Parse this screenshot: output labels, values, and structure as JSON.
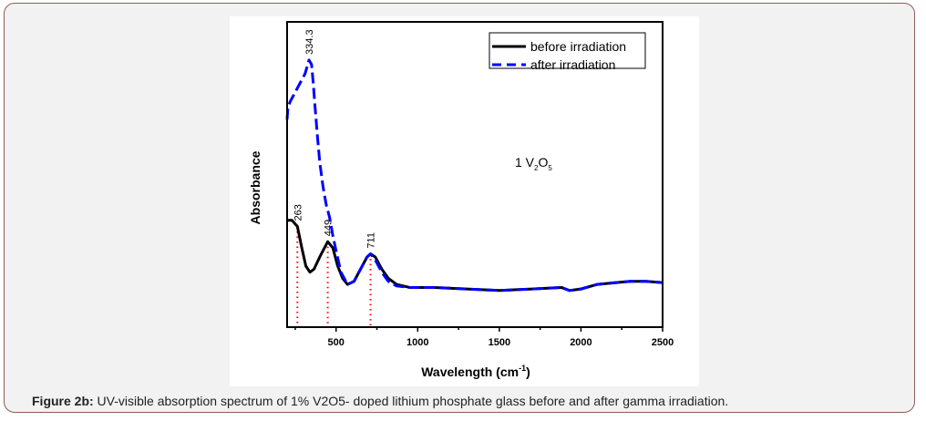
{
  "caption": {
    "label": "Figure 2b:",
    "text": " UV-visible absorption spectrum of 1% V2O5- doped lithium phosphate glass before and after gamma irradiation."
  },
  "chart_data": {
    "type": "line",
    "xlabel": "Wavelength (cm",
    "xlabel_sup": "-1",
    "xlabel_end": ")",
    "ylabel": "Absorbance",
    "xlim": [
      200,
      2500
    ],
    "ylim": [
      0,
      1
    ],
    "xticks": [
      500,
      1000,
      1500,
      2000,
      2500
    ],
    "y_tick_labels_shown": false,
    "grid": false,
    "legend": "top-right",
    "annotation_main": {
      "prefix": "1 V",
      "sub1": "2",
      "mid": "O",
      "sub2": "5"
    },
    "series": [
      {
        "name": "before irradiation",
        "color": "#000000",
        "style": "solid",
        "x": [
          200,
          230,
          263,
          290,
          315,
          340,
          365,
          400,
          449,
          480,
          510,
          540,
          570,
          610,
          650,
          690,
          711,
          740,
          780,
          820,
          870,
          950,
          1100,
          1300,
          1500,
          1700,
          1880,
          1930,
          2000,
          2100,
          2200,
          2300,
          2400,
          2500
        ],
        "y": [
          0.35,
          0.35,
          0.33,
          0.26,
          0.2,
          0.18,
          0.19,
          0.23,
          0.28,
          0.26,
          0.2,
          0.16,
          0.14,
          0.15,
          0.19,
          0.23,
          0.24,
          0.23,
          0.19,
          0.16,
          0.14,
          0.13,
          0.13,
          0.125,
          0.12,
          0.125,
          0.13,
          0.12,
          0.125,
          0.14,
          0.145,
          0.15,
          0.15,
          0.146
        ]
      },
      {
        "name": "after irradiation",
        "color": "#0000ff",
        "style": "dashed",
        "x": [
          200,
          205,
          220,
          250,
          280,
          310,
          334,
          350,
          360,
          370,
          385,
          400,
          420,
          440,
          460,
          480,
          500,
          530,
          570,
          610,
          650,
          690,
          711,
          740,
          780,
          820,
          870,
          950,
          1100,
          1300,
          1500,
          1700,
          1880,
          1930,
          2000,
          2100,
          2200,
          2300,
          2400,
          2500
        ],
        "y": [
          0.68,
          0.72,
          0.74,
          0.77,
          0.8,
          0.83,
          0.875,
          0.86,
          0.8,
          0.73,
          0.63,
          0.54,
          0.46,
          0.4,
          0.36,
          0.3,
          0.25,
          0.18,
          0.14,
          0.15,
          0.19,
          0.23,
          0.24,
          0.22,
          0.18,
          0.15,
          0.135,
          0.13,
          0.13,
          0.125,
          0.12,
          0.125,
          0.13,
          0.12,
          0.125,
          0.14,
          0.145,
          0.15,
          0.15,
          0.146
        ]
      }
    ],
    "peak_labels": [
      {
        "x": 263,
        "label": "263"
      },
      {
        "x": 334.3,
        "label": "334.3"
      },
      {
        "x": 449,
        "label": "449"
      },
      {
        "x": 711,
        "label": "711"
      }
    ]
  }
}
